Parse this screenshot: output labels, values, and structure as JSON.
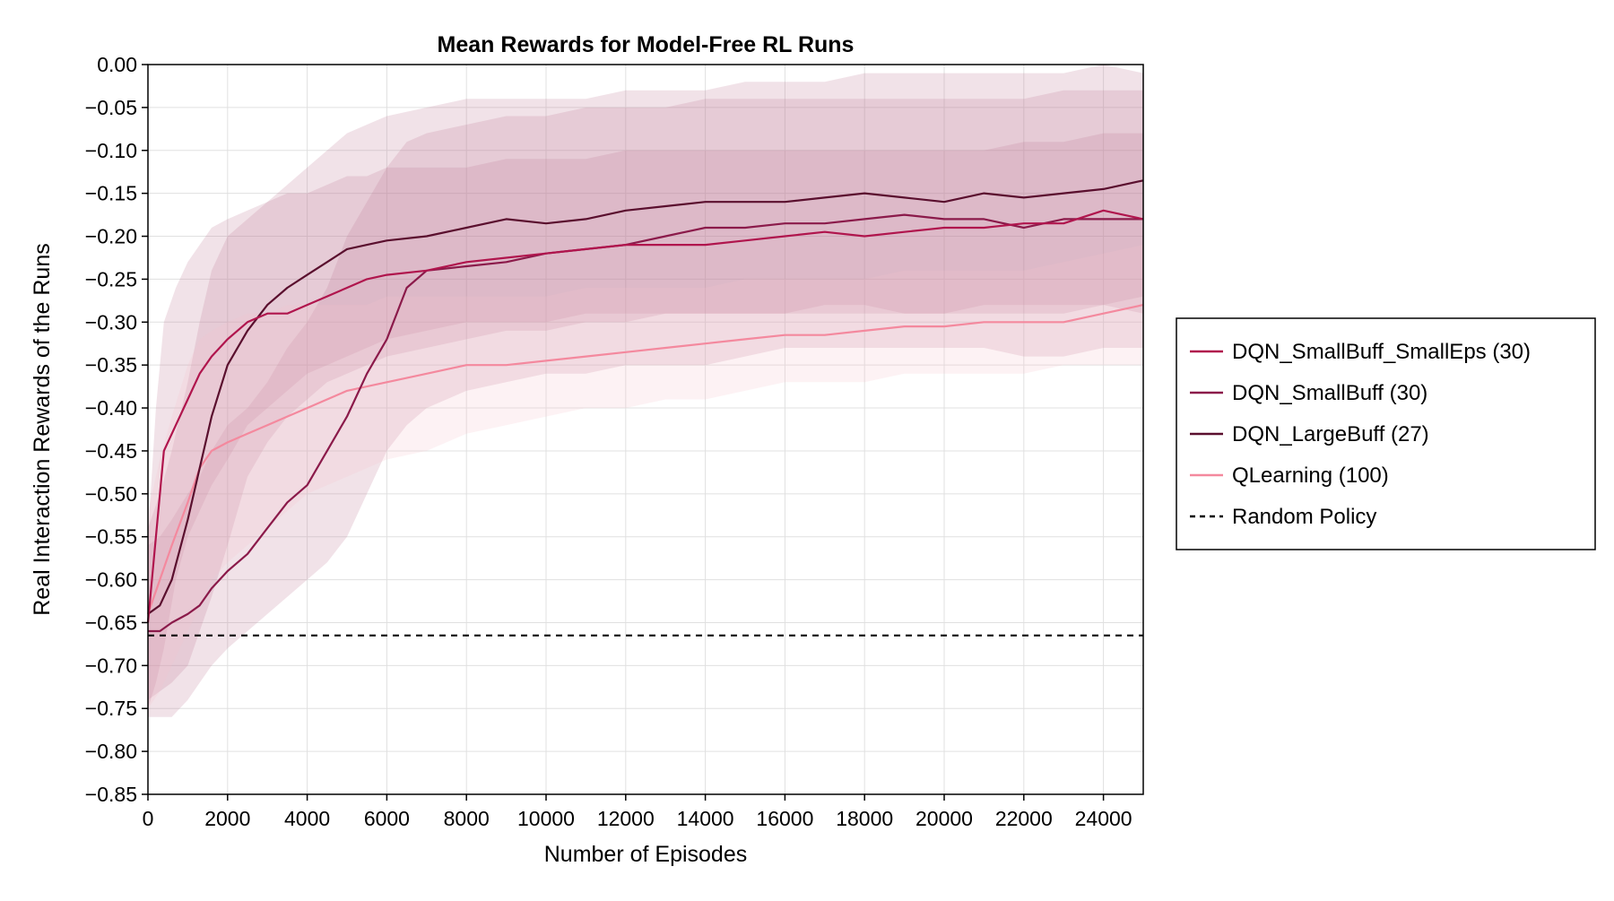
{
  "chart_data": {
    "type": "line",
    "title": "Mean Rewards for Model-Free RL Runs",
    "xlabel": "Number of Episodes",
    "ylabel": "Real Interaction Rewards of the Runs",
    "xlim": [
      0,
      25000
    ],
    "ylim": [
      -0.85,
      0.0
    ],
    "xticks": [
      0,
      2000,
      4000,
      6000,
      8000,
      10000,
      12000,
      14000,
      16000,
      18000,
      20000,
      22000,
      24000
    ],
    "xtick_labels": [
      "0",
      "2000",
      "4000",
      "6000",
      "8000",
      "10000",
      "12000",
      "14000",
      "16000",
      "18000",
      "20000",
      "22000",
      "24000"
    ],
    "yticks": [
      0.0,
      -0.05,
      -0.1,
      -0.15,
      -0.2,
      -0.25,
      -0.3,
      -0.35,
      -0.4,
      -0.45,
      -0.5,
      -0.55,
      -0.6,
      -0.65,
      -0.7,
      -0.75,
      -0.8,
      -0.85
    ],
    "ytick_labels": [
      "0.00",
      "−0.05",
      "−0.10",
      "−0.15",
      "−0.20",
      "−0.25",
      "−0.30",
      "−0.35",
      "−0.40",
      "−0.45",
      "−0.50",
      "−0.55",
      "−0.60",
      "−0.65",
      "−0.70",
      "−0.75",
      "−0.80",
      "−0.85"
    ],
    "grid": true,
    "legend_position": "outside-right",
    "series": [
      {
        "name": "DQN_SmallBuff_SmallEps (30)",
        "color": "#b0154d",
        "band_color": "#c07a98",
        "x": [
          0,
          200,
          400,
          700,
          1000,
          1300,
          1600,
          2000,
          2500,
          3000,
          3500,
          4000,
          4500,
          5000,
          5500,
          6000,
          7000,
          8000,
          9000,
          10000,
          11000,
          12000,
          13000,
          14000,
          15000,
          16000,
          17000,
          18000,
          19000,
          20000,
          21000,
          22000,
          23000,
          24000,
          25000
        ],
        "y": [
          -0.65,
          -0.55,
          -0.45,
          -0.42,
          -0.39,
          -0.36,
          -0.34,
          -0.32,
          -0.3,
          -0.29,
          -0.29,
          -0.28,
          -0.27,
          -0.26,
          -0.25,
          -0.245,
          -0.24,
          -0.23,
          -0.225,
          -0.22,
          -0.215,
          -0.21,
          -0.21,
          -0.21,
          -0.205,
          -0.2,
          -0.195,
          -0.2,
          -0.195,
          -0.19,
          -0.19,
          -0.185,
          -0.185,
          -0.17,
          -0.18
        ],
        "lower": [
          -0.75,
          -0.72,
          -0.68,
          -0.6,
          -0.55,
          -0.52,
          -0.49,
          -0.46,
          -0.42,
          -0.4,
          -0.38,
          -0.36,
          -0.35,
          -0.34,
          -0.33,
          -0.32,
          -0.31,
          -0.3,
          -0.3,
          -0.3,
          -0.29,
          -0.29,
          -0.29,
          -0.29,
          -0.29,
          -0.29,
          -0.29,
          -0.29,
          -0.29,
          -0.29,
          -0.29,
          -0.29,
          -0.29,
          -0.28,
          -0.29
        ],
        "upper": [
          -0.55,
          -0.4,
          -0.3,
          -0.26,
          -0.23,
          -0.21,
          -0.19,
          -0.18,
          -0.17,
          -0.16,
          -0.15,
          -0.15,
          -0.14,
          -0.13,
          -0.13,
          -0.12,
          -0.12,
          -0.12,
          -0.11,
          -0.11,
          -0.11,
          -0.1,
          -0.1,
          -0.1,
          -0.1,
          -0.1,
          -0.1,
          -0.1,
          -0.1,
          -0.1,
          -0.1,
          -0.09,
          -0.09,
          -0.08,
          -0.08
        ]
      },
      {
        "name": "DQN_SmallBuff (30)",
        "color": "#8b1a4a",
        "band_color": "#c07a98",
        "x": [
          0,
          300,
          600,
          1000,
          1300,
          1600,
          2000,
          2500,
          3000,
          3500,
          4000,
          4500,
          5000,
          5500,
          6000,
          6500,
          7000,
          8000,
          9000,
          10000,
          11000,
          12000,
          13000,
          14000,
          15000,
          16000,
          17000,
          18000,
          19000,
          20000,
          21000,
          22000,
          23000,
          24000,
          25000
        ],
        "y": [
          -0.66,
          -0.66,
          -0.65,
          -0.64,
          -0.63,
          -0.61,
          -0.59,
          -0.57,
          -0.54,
          -0.51,
          -0.49,
          -0.45,
          -0.41,
          -0.36,
          -0.32,
          -0.26,
          -0.24,
          -0.235,
          -0.23,
          -0.22,
          -0.215,
          -0.21,
          -0.2,
          -0.19,
          -0.19,
          -0.185,
          -0.185,
          -0.18,
          -0.175,
          -0.18,
          -0.18,
          -0.19,
          -0.18,
          -0.18,
          -0.18
        ],
        "lower": [
          -0.76,
          -0.76,
          -0.76,
          -0.74,
          -0.72,
          -0.7,
          -0.68,
          -0.66,
          -0.64,
          -0.62,
          -0.6,
          -0.58,
          -0.55,
          -0.5,
          -0.45,
          -0.42,
          -0.4,
          -0.38,
          -0.37,
          -0.36,
          -0.36,
          -0.35,
          -0.35,
          -0.35,
          -0.34,
          -0.33,
          -0.33,
          -0.33,
          -0.33,
          -0.33,
          -0.33,
          -0.34,
          -0.34,
          -0.33,
          -0.33
        ],
        "upper": [
          -0.56,
          -0.55,
          -0.53,
          -0.5,
          -0.48,
          -0.45,
          -0.42,
          -0.4,
          -0.37,
          -0.33,
          -0.3,
          -0.26,
          -0.2,
          -0.16,
          -0.12,
          -0.09,
          -0.08,
          -0.07,
          -0.06,
          -0.06,
          -0.05,
          -0.05,
          -0.05,
          -0.04,
          -0.04,
          -0.04,
          -0.04,
          -0.04,
          -0.04,
          -0.04,
          -0.04,
          -0.04,
          -0.03,
          -0.03,
          -0.03
        ]
      },
      {
        "name": "DQN_LargeBuff (27)",
        "color": "#5a0f2e",
        "band_color": "#c07a98",
        "x": [
          0,
          300,
          600,
          1000,
          1300,
          1600,
          2000,
          2500,
          3000,
          3500,
          4000,
          4500,
          5000,
          5500,
          6000,
          7000,
          8000,
          9000,
          10000,
          11000,
          12000,
          13000,
          14000,
          15000,
          16000,
          17000,
          18000,
          19000,
          20000,
          21000,
          22000,
          23000,
          24000,
          25000
        ],
        "y": [
          -0.64,
          -0.63,
          -0.6,
          -0.53,
          -0.47,
          -0.41,
          -0.35,
          -0.31,
          -0.28,
          -0.26,
          -0.245,
          -0.23,
          -0.215,
          -0.21,
          -0.205,
          -0.2,
          -0.19,
          -0.18,
          -0.185,
          -0.18,
          -0.17,
          -0.165,
          -0.16,
          -0.16,
          -0.16,
          -0.155,
          -0.15,
          -0.155,
          -0.16,
          -0.15,
          -0.155,
          -0.15,
          -0.145,
          -0.135
        ],
        "lower": [
          -0.74,
          -0.73,
          -0.72,
          -0.7,
          -0.66,
          -0.62,
          -0.56,
          -0.48,
          -0.44,
          -0.41,
          -0.39,
          -0.37,
          -0.36,
          -0.35,
          -0.34,
          -0.33,
          -0.32,
          -0.31,
          -0.31,
          -0.3,
          -0.3,
          -0.29,
          -0.29,
          -0.29,
          -0.29,
          -0.28,
          -0.28,
          -0.29,
          -0.29,
          -0.28,
          -0.28,
          -0.28,
          -0.28,
          -0.27
        ],
        "upper": [
          -0.54,
          -0.5,
          -0.45,
          -0.37,
          -0.3,
          -0.24,
          -0.2,
          -0.18,
          -0.16,
          -0.14,
          -0.12,
          -0.1,
          -0.08,
          -0.07,
          -0.06,
          -0.05,
          -0.04,
          -0.04,
          -0.04,
          -0.04,
          -0.03,
          -0.03,
          -0.03,
          -0.02,
          -0.02,
          -0.02,
          -0.01,
          -0.01,
          -0.01,
          -0.01,
          -0.01,
          -0.01,
          0.0,
          -0.01
        ]
      },
      {
        "name": "QLearning (100)",
        "color": "#f4899e",
        "band_color": "#f7c2cf",
        "x": [
          0,
          300,
          600,
          1000,
          1300,
          1600,
          2000,
          2500,
          3000,
          3500,
          4000,
          4500,
          5000,
          5500,
          6000,
          7000,
          8000,
          9000,
          10000,
          11000,
          12000,
          13000,
          14000,
          15000,
          16000,
          17000,
          18000,
          19000,
          20000,
          21000,
          22000,
          23000,
          24000,
          25000
        ],
        "y": [
          -0.64,
          -0.6,
          -0.56,
          -0.51,
          -0.47,
          -0.45,
          -0.44,
          -0.43,
          -0.42,
          -0.41,
          -0.4,
          -0.39,
          -0.38,
          -0.375,
          -0.37,
          -0.36,
          -0.35,
          -0.35,
          -0.345,
          -0.34,
          -0.335,
          -0.33,
          -0.325,
          -0.32,
          -0.315,
          -0.315,
          -0.31,
          -0.305,
          -0.305,
          -0.3,
          -0.3,
          -0.3,
          -0.29,
          -0.28
        ],
        "lower": [
          -0.75,
          -0.73,
          -0.7,
          -0.66,
          -0.63,
          -0.6,
          -0.58,
          -0.56,
          -0.54,
          -0.52,
          -0.5,
          -0.49,
          -0.48,
          -0.47,
          -0.46,
          -0.45,
          -0.43,
          -0.42,
          -0.41,
          -0.4,
          -0.4,
          -0.39,
          -0.39,
          -0.38,
          -0.37,
          -0.37,
          -0.37,
          -0.36,
          -0.36,
          -0.36,
          -0.36,
          -0.35,
          -0.35,
          -0.35
        ],
        "upper": [
          -0.52,
          -0.46,
          -0.41,
          -0.35,
          -0.32,
          -0.31,
          -0.3,
          -0.29,
          -0.29,
          -0.28,
          -0.28,
          -0.28,
          -0.28,
          -0.28,
          -0.27,
          -0.27,
          -0.27,
          -0.27,
          -0.27,
          -0.26,
          -0.26,
          -0.26,
          -0.26,
          -0.25,
          -0.25,
          -0.25,
          -0.25,
          -0.24,
          -0.24,
          -0.24,
          -0.24,
          -0.23,
          -0.22,
          -0.21
        ]
      }
    ],
    "reference_lines": [
      {
        "name": "Random Policy",
        "y": -0.665,
        "color": "#000000",
        "style": "dashed"
      }
    ]
  }
}
